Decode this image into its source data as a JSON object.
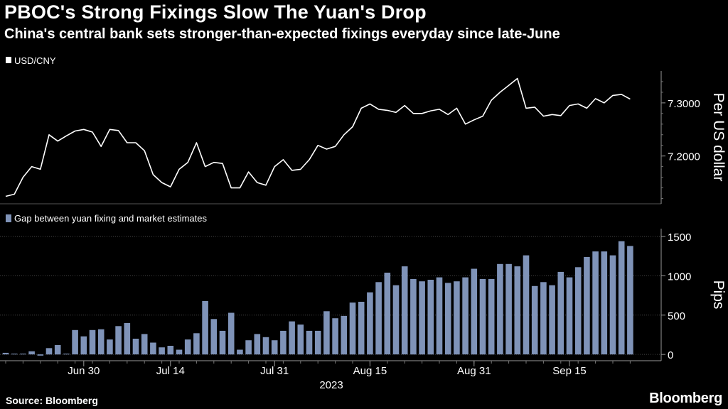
{
  "title": "PBOC's Strong Fixings Slow The Yuan's Drop",
  "subtitle": "China's central bank sets stronger-than-expected fixings everyday since late-June",
  "source": "Source: Bloomberg",
  "logo": "Bloomberg",
  "colors": {
    "background": "#000000",
    "line": "#ffffff",
    "bars": "#7f93b8",
    "grid": "#555555"
  },
  "chart_data": [
    {
      "type": "line",
      "legend": "USD/CNY",
      "ylabel": "Per US dollar",
      "ylim": [
        7.11,
        7.36
      ],
      "yticks": [
        7.2,
        7.3
      ],
      "ytick_labels": [
        "7.2000",
        "7.3000"
      ],
      "axis_side": "right",
      "values": [
        7.124,
        7.128,
        7.16,
        7.18,
        7.175,
        7.24,
        7.228,
        7.238,
        7.247,
        7.25,
        7.245,
        7.218,
        7.25,
        7.248,
        7.225,
        7.225,
        7.21,
        7.165,
        7.15,
        7.142,
        7.175,
        7.188,
        7.225,
        7.18,
        7.188,
        7.186,
        7.14,
        7.14,
        7.17,
        7.15,
        7.145,
        7.18,
        7.193,
        7.173,
        7.175,
        7.193,
        7.22,
        7.213,
        7.218,
        7.24,
        7.255,
        7.29,
        7.298,
        7.288,
        7.286,
        7.282,
        7.295,
        7.28,
        7.28,
        7.285,
        7.288,
        7.278,
        7.29,
        7.26,
        7.268,
        7.275,
        7.305,
        7.32,
        7.333,
        7.346,
        7.29,
        7.292,
        7.275,
        7.278,
        7.276,
        7.295,
        7.298,
        7.29,
        7.308,
        7.3,
        7.314,
        7.316,
        7.307
      ]
    },
    {
      "type": "bar",
      "legend": "Gap between yuan fixing and market estimates",
      "ylabel": "Pips",
      "ylim": [
        -80,
        1600
      ],
      "yticks": [
        0,
        500,
        1000,
        1500
      ],
      "ytick_labels": [
        "0",
        "500",
        "1000",
        "1500"
      ],
      "axis_side": "right",
      "values": [
        20,
        10,
        10,
        40,
        -15,
        80,
        120,
        10,
        310,
        230,
        310,
        320,
        190,
        360,
        400,
        200,
        260,
        150,
        90,
        110,
        60,
        190,
        270,
        680,
        450,
        300,
        530,
        60,
        180,
        260,
        220,
        180,
        300,
        420,
        380,
        300,
        300,
        550,
        460,
        490,
        660,
        670,
        790,
        920,
        1040,
        880,
        1120,
        960,
        930,
        950,
        980,
        910,
        930,
        980,
        1090,
        960,
        960,
        1150,
        1150,
        1120,
        1260,
        870,
        920,
        880,
        1050,
        980,
        1110,
        1240,
        1310,
        1310,
        1260,
        1440,
        1380
      ],
      "x_tick_labels": [
        "Jun 30",
        "Jul 14",
        "Jul 31",
        "Aug 15",
        "Aug 31",
        "Sep 15"
      ],
      "x_year_label": "2023"
    }
  ]
}
